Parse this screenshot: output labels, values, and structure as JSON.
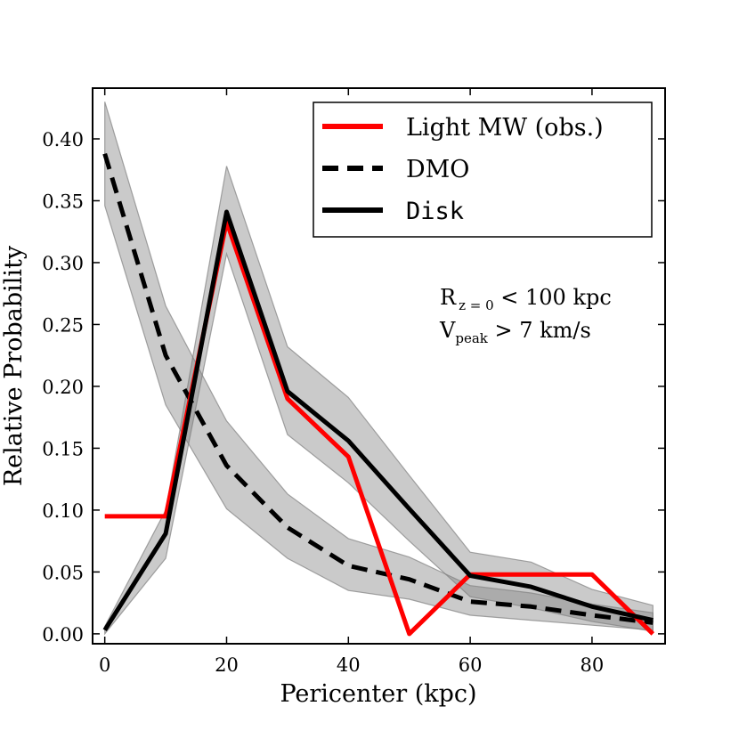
{
  "chart_data": {
    "type": "line",
    "xlabel": "Pericenter (kpc)",
    "ylabel": "Relative Probability",
    "xlim": [
      -2,
      92
    ],
    "ylim": [
      -0.008,
      0.441
    ],
    "x_ticks": [
      0,
      20,
      40,
      60,
      80
    ],
    "x_tick_labels": [
      "0",
      "20",
      "40",
      "60",
      "80"
    ],
    "y_ticks": [
      0.0,
      0.05,
      0.1,
      0.15,
      0.2,
      0.25,
      0.3,
      0.35,
      0.4
    ],
    "y_tick_labels": [
      "0.00",
      "0.05",
      "0.10",
      "0.15",
      "0.20",
      "0.25",
      "0.30",
      "0.35",
      "0.40"
    ],
    "grid": false,
    "legend_position": "top-right",
    "series": [
      {
        "name": "Light MW (obs.)",
        "style": "solid",
        "color": "#ff0000",
        "x": [
          0,
          10,
          20,
          30,
          40,
          50,
          60,
          70,
          80,
          90
        ],
        "values": [
          0.095,
          0.095,
          0.333,
          0.19,
          0.143,
          0.0,
          0.048,
          0.048,
          0.048,
          0.0
        ]
      },
      {
        "name": "DMO",
        "style": "dashed",
        "color": "#000000",
        "x": [
          0,
          10,
          20,
          30,
          40,
          50,
          60,
          70,
          80,
          90
        ],
        "values": [
          0.388,
          0.225,
          0.136,
          0.086,
          0.055,
          0.044,
          0.026,
          0.022,
          0.015,
          0.009
        ],
        "band_upper": [
          0.43,
          0.265,
          0.172,
          0.113,
          0.077,
          0.062,
          0.039,
          0.033,
          0.024,
          0.017
        ],
        "band_lower": [
          0.346,
          0.185,
          0.101,
          0.061,
          0.035,
          0.028,
          0.015,
          0.011,
          0.007,
          0.003
        ]
      },
      {
        "name": "Disk",
        "style": "solid",
        "color": "#000000",
        "x": [
          0,
          10,
          20,
          30,
          40,
          50,
          60,
          70,
          80,
          90
        ],
        "values": [
          0.003,
          0.081,
          0.341,
          0.196,
          0.156,
          0.101,
          0.047,
          0.038,
          0.022,
          0.011
        ],
        "band_upper": [
          0.006,
          0.1,
          0.378,
          0.232,
          0.191,
          0.128,
          0.066,
          0.058,
          0.036,
          0.023
        ],
        "band_lower": [
          0.0,
          0.061,
          0.307,
          0.161,
          0.122,
          0.075,
          0.03,
          0.021,
          0.01,
          0.002
        ]
      }
    ],
    "annotations": {
      "line1": {
        "main": "R",
        "sub": "z = 0",
        "rest": " < 100 kpc"
      },
      "line2": {
        "main": "V",
        "sub": "peak",
        "rest": " > 7 km/s"
      }
    },
    "band_color": "#808080"
  }
}
